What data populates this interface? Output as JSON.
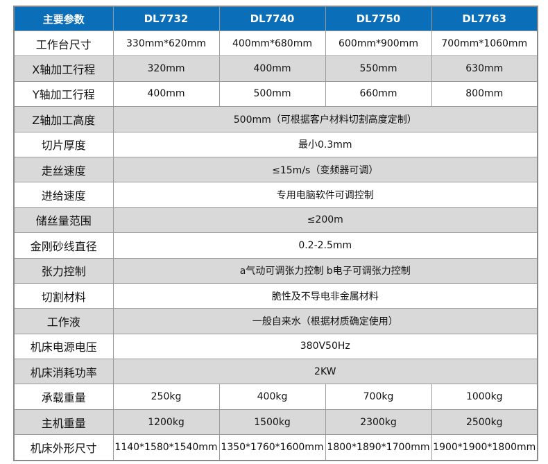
{
  "header": {
    "label": "主要参数",
    "models": [
      "DL7732",
      "DL7740",
      "DL7750",
      "DL7763"
    ]
  },
  "rows": [
    {
      "label": "工作台尺寸",
      "values": [
        "330mm*620mm",
        "400mm*680mm",
        "600mm*900mm",
        "700mm*1060mm"
      ]
    },
    {
      "label": "X轴加工行程",
      "values": [
        "320mm",
        "400mm",
        "550mm",
        "630mm"
      ]
    },
    {
      "label": "Y轴加工行程",
      "values": [
        "400mm",
        "500mm",
        "660mm",
        "800mm"
      ]
    },
    {
      "label": "Z轴加工高度",
      "value": "500mm（可根据客户材料切割高度定制）"
    },
    {
      "label": "切片厚度",
      "value": "最小0.3mm"
    },
    {
      "label": "走丝速度",
      "value": "≤15m/s（变频器可调）"
    },
    {
      "label": "进给速度",
      "value": "专用电脑软件可调控制"
    },
    {
      "label": "储丝量范围",
      "value": "≤200m"
    },
    {
      "label": "金刚砂线直径",
      "value": "0.2-2.5mm"
    },
    {
      "label": "张力控制",
      "value": "a气动可调张力控制 b电子可调张力控制"
    },
    {
      "label": "切割材料",
      "value": "脆性及不导电非金属材料"
    },
    {
      "label": "工作液",
      "value": "一般自来水（根据材质确定使用）"
    },
    {
      "label": "机床电源电压",
      "value": "380V50Hz"
    },
    {
      "label": "机床消耗功率",
      "value": "2KW"
    },
    {
      "label": "承载重量",
      "values": [
        "250kg",
        "400kg",
        "700kg",
        "1000kg"
      ]
    },
    {
      "label": "主机重量",
      "values": [
        "1200kg",
        "1500kg",
        "2300kg",
        "2500kg"
      ]
    },
    {
      "label": "机床外形尺寸",
      "values": [
        "1140*1580*1540mm",
        "1350*1760*1600mm",
        "1800*1890*1700mm",
        "1900*1900*1800mm"
      ]
    }
  ],
  "colors": {
    "header": "#0a6eb8",
    "stripe": "#d9d9d9"
  }
}
